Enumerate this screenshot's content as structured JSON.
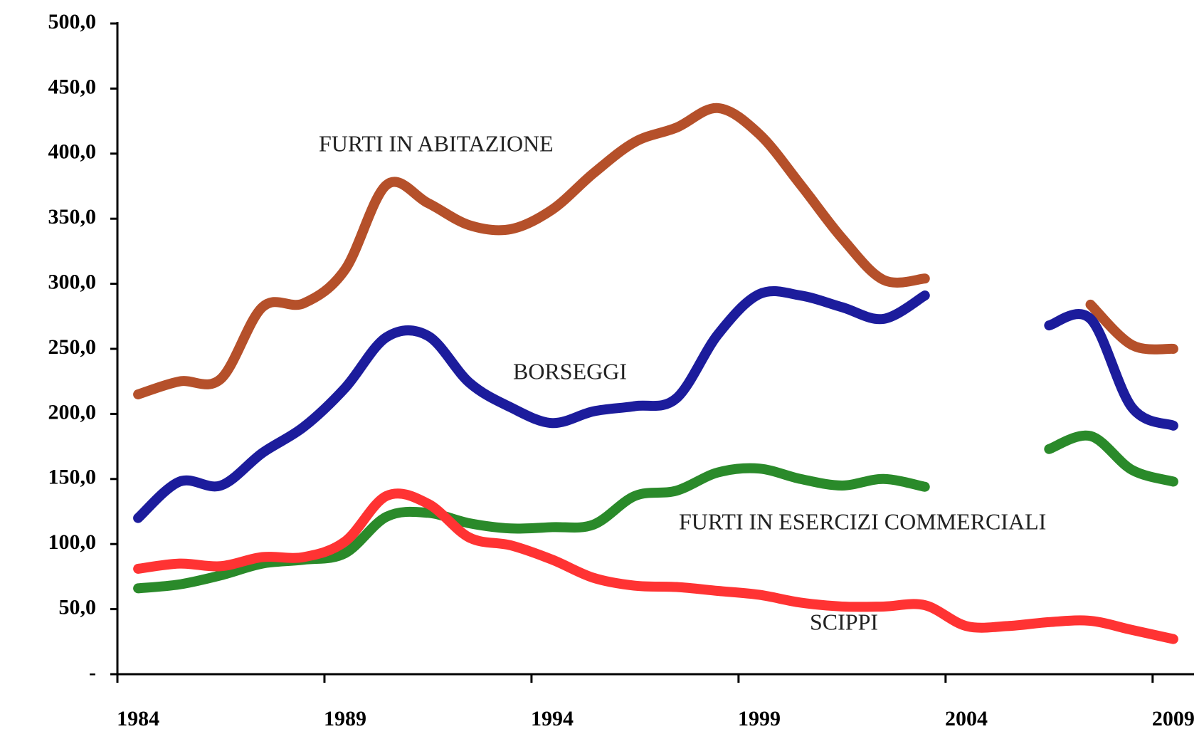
{
  "chart_data": {
    "type": "line",
    "categories": [
      "1984",
      null,
      null,
      null,
      null,
      "1989",
      null,
      null,
      null,
      null,
      "1994",
      null,
      null,
      null,
      null,
      "1999",
      null,
      null,
      null,
      null,
      "2004",
      null,
      null,
      null,
      null,
      "2009"
    ],
    "series": [
      {
        "name": "FURTI IN ABITAZIONE",
        "color": "#b5502a",
        "values": [
          215,
          225,
          227,
          282,
          285,
          311,
          376,
          362,
          345,
          342,
          357,
          385,
          409,
          420,
          435,
          415,
          376,
          335,
          303,
          304,
          null,
          null,
          null,
          284,
          253,
          250
        ]
      },
      {
        "name": "BORSEGGI",
        "color": "#1c1c9c",
        "values": [
          120,
          148,
          145,
          170,
          190,
          220,
          259,
          260,
          224,
          205,
          193,
          202,
          206,
          212,
          261,
          292,
          291,
          282,
          273,
          291,
          null,
          null,
          268,
          273,
          205,
          191
        ]
      },
      {
        "name": "FURTI IN ESERCIZI COMMERCIALI",
        "color": "#2a8a2a",
        "values": [
          66,
          69,
          76,
          85,
          88,
          93,
          121,
          124,
          116,
          112,
          113,
          115,
          137,
          141,
          155,
          158,
          150,
          145,
          150,
          144,
          null,
          null,
          173,
          183,
          157,
          148
        ]
      },
      {
        "name": "SCIPPI",
        "color": "#ff3333",
        "values": [
          81,
          85,
          83,
          90,
          90,
          102,
          137,
          131,
          105,
          99,
          88,
          74,
          68,
          67,
          64,
          61,
          55,
          52,
          52,
          53,
          37,
          37,
          40,
          41,
          34,
          27
        ]
      }
    ],
    "ylim": [
      0,
      500
    ],
    "yticks": [
      {
        "value": 0,
        "label": "-"
      },
      {
        "value": 50,
        "label": "50,0"
      },
      {
        "value": 100,
        "label": "100,0"
      },
      {
        "value": 150,
        "label": "150,0"
      },
      {
        "value": 200,
        "label": "200,0"
      },
      {
        "value": 250,
        "label": "250,0"
      },
      {
        "value": 300,
        "label": "300,0"
      },
      {
        "value": 350,
        "label": "350,0"
      },
      {
        "value": 400,
        "label": "400,0"
      },
      {
        "value": 450,
        "label": "450,0"
      },
      {
        "value": 500,
        "label": "500,0"
      }
    ]
  }
}
